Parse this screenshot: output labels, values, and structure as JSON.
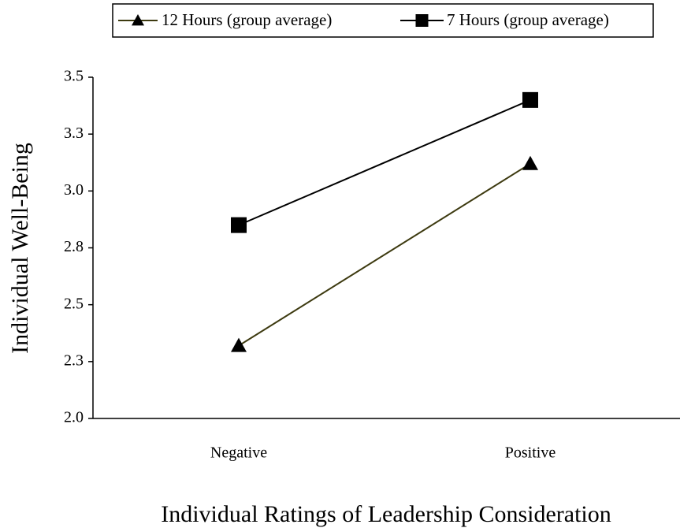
{
  "chart_data": {
    "type": "line",
    "x_label": "Individual Ratings of Leadership Consideration",
    "y_label": "Individual Well-Being",
    "categories": [
      "Negative",
      "Positive"
    ],
    "series": [
      {
        "name": "12 Hours (group average)",
        "color": "#3d3a10",
        "marker": "triangle",
        "marker_color": "#000000",
        "values": [
          2.32,
          3.12
        ]
      },
      {
        "name": "7 Hours (group average)",
        "color": "#000000",
        "marker": "square",
        "marker_color": "#000000",
        "values": [
          2.85,
          3.4
        ]
      }
    ],
    "ylim": [
      2.0,
      3.5
    ],
    "yticks": [
      {
        "value": 2.0,
        "label": "2.0"
      },
      {
        "value": 2.25,
        "label": "2.3"
      },
      {
        "value": 2.5,
        "label": "2.5"
      },
      {
        "value": 2.75,
        "label": "2.8"
      },
      {
        "value": 3.0,
        "label": "3.0"
      },
      {
        "value": 3.25,
        "label": "3.3"
      },
      {
        "value": 3.5,
        "label": "3.5"
      }
    ],
    "legend": "top"
  }
}
